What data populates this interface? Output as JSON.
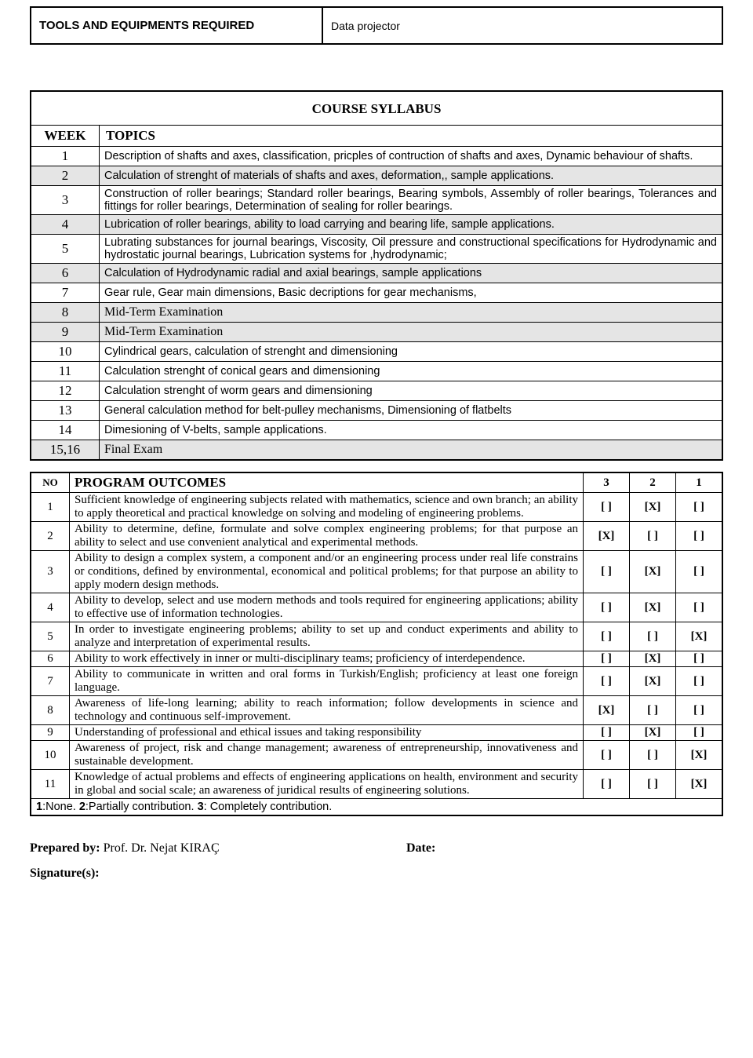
{
  "top": {
    "label": "TOOLS AND EQUIPMENTS REQUIRED",
    "value": "Data projector"
  },
  "syllabus": {
    "title": "COURSE SYLLABUS",
    "week_hdr": "WEEK",
    "topics_hdr": "TOPICS",
    "rows": [
      {
        "wk": "1",
        "shade": false,
        "serif": false,
        "t": "Description of shafts and axes, classification, pricples of contruction of shafts and axes, Dynamic behaviour of shafts."
      },
      {
        "wk": "2",
        "shade": true,
        "serif": false,
        "t": "Calculation of strenght of materials of shafts and axes, deformation,, sample applications."
      },
      {
        "wk": "3",
        "shade": false,
        "serif": false,
        "t": "Construction of roller bearings; Standard roller bearings, Bearing symbols, Assembly of roller bearings, Tolerances and fittings for roller bearings, Determination of sealing for roller bearings."
      },
      {
        "wk": "4",
        "shade": true,
        "serif": false,
        "t": "Lubrication of roller bearings, ability to load carrying and bearing life, sample applications."
      },
      {
        "wk": "5",
        "shade": false,
        "serif": false,
        "t": "Lubrating substances for journal bearings, Viscosity, Oil pressure and constructional specifications for Hydrodynamic and hydrostatic journal bearings, Lubrication systems for ,hydrodynamic;"
      },
      {
        "wk": "6",
        "shade": true,
        "serif": false,
        "t": "Calculation of Hydrodynamic radial and axial bearings, sample applications"
      },
      {
        "wk": "7",
        "shade": false,
        "serif": false,
        "t": "Gear rule, Gear main dimensions, Basic decriptions for gear mechanisms,"
      },
      {
        "wk": "8",
        "shade": true,
        "serif": true,
        "t": "Mid-Term Examination"
      },
      {
        "wk": "9",
        "shade": true,
        "serif": true,
        "t": "Mid-Term Examination"
      },
      {
        "wk": "10",
        "shade": false,
        "serif": false,
        "t": "Cylindrical gears, calculation of strenght and dimensioning"
      },
      {
        "wk": "11",
        "shade": false,
        "serif": false,
        "t": "Calculation strenght of conical gears and dimensioning"
      },
      {
        "wk": "12",
        "shade": false,
        "serif": false,
        "t": "Calculation strenght of worm gears and dimensioning"
      },
      {
        "wk": "13",
        "shade": false,
        "serif": false,
        "t": "General calculation method for belt-pulley mechanisms,  Dimensioning of flatbelts"
      },
      {
        "wk": "14",
        "shade": false,
        "serif": false,
        "t": "Dimesioning of V-belts, sample applications."
      },
      {
        "wk": "15,16",
        "shade": true,
        "serif": true,
        "t": "Final Exam"
      }
    ]
  },
  "outcomes": {
    "no_hdr": "NO",
    "title": "PROGRAM OUTCOMES",
    "c3": "3",
    "c2": "2",
    "c1": "1",
    "rows": [
      {
        "no": "1",
        "d": "Sufficient knowledge of engineering subjects related with mathematics, science and own branch; an ability to apply theoretical and practical knowledge on solving and modeling of engineering problems.",
        "v3": "[  ]",
        "v2": "[X]",
        "v1": "[  ]"
      },
      {
        "no": "2",
        "d": "Ability to determine, define, formulate and solve complex engineering problems; for that purpose an ability to select and use convenient analytical and experimental methods.",
        "v3": "[X]",
        "v2": "[  ]",
        "v1": "[  ]"
      },
      {
        "no": "3",
        "d": "Ability to design a complex system, a component and/or an engineering process under real life constrains or conditions, defined by environmental, economical and political problems; for that purpose an ability to apply modern design methods.",
        "v3": "[  ]",
        "v2": "[X]",
        "v1": "[  ]"
      },
      {
        "no": "4",
        "d": "Ability to develop, select and use modern methods and tools required for engineering applications; ability to effective use of information technologies.",
        "v3": "[  ]",
        "v2": "[X]",
        "v1": "[  ]"
      },
      {
        "no": "5",
        "d": "In order to investigate engineering problems; ability to set up and conduct experiments and ability to analyze and interpretation of experimental results.",
        "v3": "[  ]",
        "v2": "[  ]",
        "v1": "[X]"
      },
      {
        "no": "6",
        "d": "Ability to work effectively in inner or multi-disciplinary teams; proficiency of interdependence.",
        "v3": "[  ]",
        "v2": "[X]",
        "v1": "[  ]"
      },
      {
        "no": "7",
        "d": "Ability to communicate in written and oral forms in Turkish/English; proficiency at least one foreign language.",
        "v3": "[  ]",
        "v2": "[X]",
        "v1": "[  ]"
      },
      {
        "no": "8",
        "d": "Awareness of life-long learning; ability to reach information; follow developments in science and technology and continuous self-improvement.",
        "v3": "[X]",
        "v2": "[  ]",
        "v1": "[  ]"
      },
      {
        "no": "9",
        "d": "Understanding of professional and ethical issues and taking responsibility",
        "v3": "[  ]",
        "v2": "[X]",
        "v1": "[  ]"
      },
      {
        "no": "10",
        "d": "Awareness of project, risk and change management; awareness of entrepreneurship, innovativeness and sustainable development.",
        "v3": "[  ]",
        "v2": "[  ]",
        "v1": "[X]"
      },
      {
        "no": "11",
        "d": "Knowledge of actual problems and effects of engineering applications on health, environment and security in global and social scale; an awareness of juridical results of engineering solutions.",
        "v3": "[  ]",
        "v2": "[  ]",
        "v1": "[X]"
      }
    ],
    "footer_bold_1": "1",
    "footer_txt_1": ":None. ",
    "footer_bold_2": "2",
    "footer_txt_2": ":Partially contribution. ",
    "footer_bold_3": "3",
    "footer_txt_3": ": Completely contribution."
  },
  "footer": {
    "prepared_label": "Prepared by: ",
    "prepared_value": "Prof. Dr. Nejat KIRAÇ",
    "date_label": "Date:",
    "sig_label": "Signature(s):"
  }
}
